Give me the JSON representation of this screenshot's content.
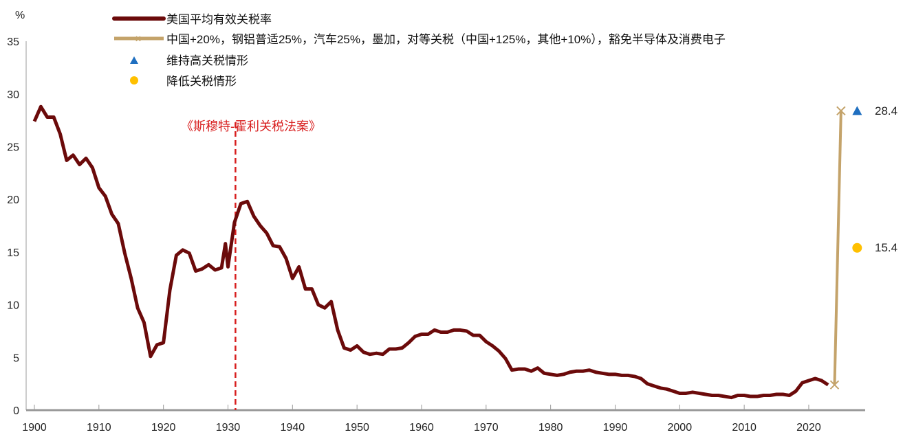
{
  "chart_data": {
    "type": "line",
    "ylabel": "%",
    "ylim": [
      0,
      35
    ],
    "xlim": [
      1900,
      2028
    ],
    "yticks": [
      "0",
      "5",
      "10",
      "15",
      "20",
      "25",
      "30",
      "35"
    ],
    "xticks": [
      "1900",
      "1910",
      "1920",
      "1930",
      "1940",
      "1950",
      "1960",
      "1970",
      "1980",
      "1990",
      "2000",
      "2010",
      "2020"
    ],
    "legend": [
      "美国平均有效关税率",
      "中国+20%，钢铝普适25%，汽车25%，墨加，对等关税（中国+125%，其他+10%），豁免半导体及消费电子",
      "维持高关税情形",
      "降低关税情形"
    ],
    "legend_position": "top-left",
    "annotation": {
      "text": "《斯穆特-霍利关税法案》",
      "year": 1931
    },
    "series": [
      {
        "name": "美国平均有效关税率",
        "color": "#6b0a0a",
        "x": [
          1900,
          1901,
          1902,
          1903,
          1904,
          1905,
          1906,
          1907,
          1908,
          1909,
          1910,
          1911,
          1912,
          1913,
          1914,
          1915,
          1916,
          1917,
          1918,
          1919,
          1920,
          1921,
          1922,
          1923,
          1924,
          1925,
          1926,
          1927,
          1928,
          1929,
          1929.6,
          1930,
          1931,
          1932,
          1933,
          1934,
          1935,
          1936,
          1937,
          1938,
          1939,
          1940,
          1941,
          1942,
          1943,
          1944,
          1945,
          1946,
          1947,
          1948,
          1949,
          1950,
          1951,
          1952,
          1953,
          1954,
          1955,
          1956,
          1957,
          1958,
          1959,
          1960,
          1961,
          1962,
          1963,
          1964,
          1965,
          1966,
          1967,
          1968,
          1969,
          1970,
          1971,
          1972,
          1973,
          1974,
          1975,
          1976,
          1977,
          1978,
          1979,
          1980,
          1981,
          1982,
          1983,
          1984,
          1985,
          1986,
          1987,
          1988,
          1989,
          1990,
          1991,
          1992,
          1993,
          1994,
          1995,
          1996,
          1997,
          1998,
          1999,
          2000,
          2001,
          2002,
          2003,
          2004,
          2005,
          2006,
          2007,
          2008,
          2009,
          2010,
          2011,
          2012,
          2013,
          2014,
          2015,
          2016,
          2017,
          2018,
          2019,
          2020,
          2021,
          2022,
          2023
        ],
        "values": [
          27.4,
          28.8,
          27.8,
          27.8,
          26.2,
          23.7,
          24.2,
          23.3,
          23.9,
          23.0,
          21.1,
          20.3,
          18.6,
          17.7,
          14.9,
          12.5,
          9.7,
          8.3,
          5.1,
          6.2,
          6.4,
          11.4,
          14.7,
          15.2,
          14.9,
          13.2,
          13.4,
          13.8,
          13.3,
          13.5,
          15.8,
          13.6,
          17.8,
          19.6,
          19.8,
          18.4,
          17.5,
          16.8,
          15.6,
          15.5,
          14.4,
          12.5,
          13.6,
          11.5,
          11.5,
          10.0,
          9.7,
          10.3,
          7.6,
          5.9,
          5.7,
          6.1,
          5.5,
          5.3,
          5.4,
          5.3,
          5.8,
          5.8,
          5.9,
          6.4,
          7.0,
          7.2,
          7.2,
          7.6,
          7.4,
          7.4,
          7.6,
          7.6,
          7.5,
          7.1,
          7.1,
          6.5,
          6.1,
          5.6,
          4.9,
          3.8,
          3.9,
          3.9,
          3.7,
          4.0,
          3.5,
          3.4,
          3.3,
          3.4,
          3.6,
          3.7,
          3.7,
          3.8,
          3.6,
          3.5,
          3.4,
          3.4,
          3.3,
          3.3,
          3.2,
          3.0,
          2.5,
          2.3,
          2.1,
          2.0,
          1.8,
          1.6,
          1.6,
          1.7,
          1.6,
          1.5,
          1.4,
          1.4,
          1.3,
          1.2,
          1.4,
          1.4,
          1.3,
          1.3,
          1.4,
          1.4,
          1.5,
          1.5,
          1.4,
          1.8,
          2.6,
          2.8,
          3.0,
          2.8,
          2.4
        ]
      },
      {
        "name": "中国+20%，钢铝普适25%，汽车25%，墨加，对等关税（中国+125%，其他+10%），豁免半导体及消费电子",
        "color": "#c4a36a",
        "x": [
          2024,
          2025
        ],
        "values": [
          2.4,
          28.4
        ]
      },
      {
        "name": "维持高关税情形",
        "color": "#1f6fc0",
        "x": [
          2027.5
        ],
        "values": [
          28.4
        ],
        "label": "28.4"
      },
      {
        "name": "降低关税情形",
        "color": "#ffc000",
        "x": [
          2027.5
        ],
        "values": [
          15.4
        ],
        "label": "15.4"
      }
    ]
  }
}
